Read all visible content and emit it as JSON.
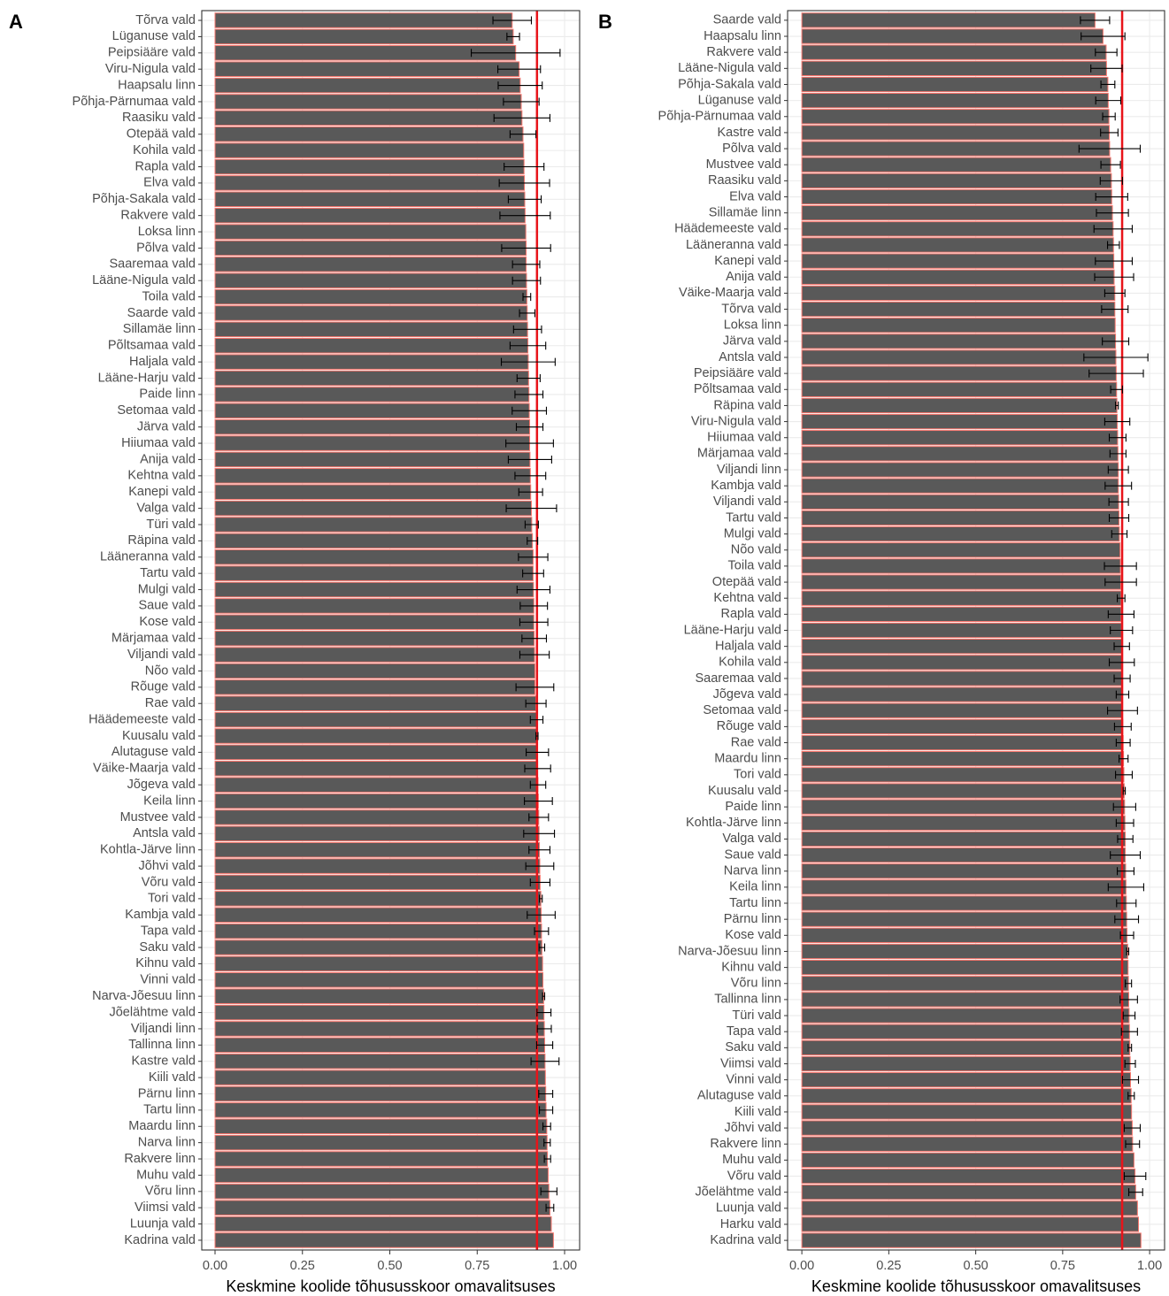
{
  "chart_data": [
    {
      "type": "bar",
      "orientation": "horizontal",
      "tag": "A",
      "categories": [
        "Tõrva vald",
        "Lüganuse vald",
        "Peipsiääre vald",
        "Viru-Nigula vald",
        "Haapsalu linn",
        "Põhja-Pärnumaa vald",
        "Raasiku vald",
        "Otepää vald",
        "Kohila vald",
        "Rapla vald",
        "Elva vald",
        "Põhja-Sakala vald",
        "Rakvere vald",
        "Loksa linn",
        "Põlva vald",
        "Saaremaa vald",
        "Lääne-Nigula vald",
        "Toila vald",
        "Saarde vald",
        "Sillamäe linn",
        "Põltsamaa vald",
        "Haljala vald",
        "Lääne-Harju vald",
        "Paide linn",
        "Setomaa vald",
        "Järva vald",
        "Hiiumaa vald",
        "Anija vald",
        "Kehtna vald",
        "Kanepi vald",
        "Valga vald",
        "Türi vald",
        "Räpina vald",
        "Lääneranna vald",
        "Tartu vald",
        "Mulgi vald",
        "Saue vald",
        "Kose vald",
        "Märjamaa vald",
        "Viljandi vald",
        "Nõo vald",
        "Rõuge vald",
        "Rae vald",
        "Häädemeeste vald",
        "Kuusalu vald",
        "Alutaguse vald",
        "Väike-Maarja vald",
        "Jõgeva vald",
        "Keila linn",
        "Mustvee vald",
        "Antsla vald",
        "Kohtla-Järve linn",
        "Jõhvi vald",
        "Võru vald",
        "Tori vald",
        "Kambja vald",
        "Tapa vald",
        "Saku vald",
        "Kihnu vald",
        "Vinni vald",
        "Narva-Jõesuu linn",
        "Jõelähtme vald",
        "Viljandi linn",
        "Tallinna linn",
        "Kastre vald",
        "Kiili vald",
        "Pärnu linn",
        "Tartu linn",
        "Maardu linn",
        "Narva linn",
        "Rakvere linn",
        "Muhu vald",
        "Võru linn",
        "Viimsi vald",
        "Luunja vald",
        "Kadrina vald"
      ],
      "values": [
        0.85,
        0.853,
        0.86,
        0.87,
        0.873,
        0.876,
        0.878,
        0.881,
        0.883,
        0.884,
        0.885,
        0.886,
        0.887,
        0.889,
        0.89,
        0.89,
        0.891,
        0.892,
        0.893,
        0.894,
        0.895,
        0.896,
        0.897,
        0.898,
        0.899,
        0.9,
        0.9,
        0.901,
        0.902,
        0.903,
        0.905,
        0.906,
        0.908,
        0.91,
        0.91,
        0.911,
        0.912,
        0.912,
        0.913,
        0.914,
        0.915,
        0.915,
        0.918,
        0.92,
        0.921,
        0.922,
        0.923,
        0.924,
        0.925,
        0.926,
        0.927,
        0.928,
        0.929,
        0.93,
        0.932,
        0.933,
        0.934,
        0.935,
        0.937,
        0.938,
        0.94,
        0.941,
        0.942,
        0.943,
        0.944,
        0.945,
        0.946,
        0.947,
        0.949,
        0.95,
        0.951,
        0.953,
        0.955,
        0.958,
        0.962,
        0.968
      ],
      "errors": [
        0.055,
        0.018,
        0.127,
        0.061,
        0.063,
        0.051,
        0.08,
        0.037,
        null,
        0.057,
        0.072,
        0.047,
        0.072,
        null,
        0.07,
        0.039,
        0.04,
        0.011,
        0.022,
        0.04,
        0.051,
        0.077,
        0.033,
        0.04,
        0.049,
        0.038,
        0.068,
        0.062,
        0.044,
        0.034,
        0.072,
        0.019,
        0.015,
        0.042,
        0.03,
        0.047,
        0.039,
        0.04,
        0.035,
        0.042,
        null,
        0.054,
        0.029,
        0.018,
        0.003,
        0.032,
        0.037,
        0.022,
        0.04,
        0.028,
        0.044,
        0.03,
        0.04,
        0.028,
        0.004,
        0.04,
        0.02,
        0.008,
        null,
        null,
        0.003,
        0.02,
        0.02,
        0.023,
        0.04,
        null,
        0.02,
        0.019,
        0.011,
        0.009,
        0.009,
        null,
        0.023,
        0.011,
        null,
        null
      ],
      "xlim": [
        -0.038,
        1.043
      ],
      "xticks": [
        {
          "value": 0,
          "label": "0.00"
        },
        {
          "value": 0.25,
          "label": "0.25"
        },
        {
          "value": 0.5,
          "label": "0.50"
        },
        {
          "value": 0.75,
          "label": "0.75"
        },
        {
          "value": 1,
          "label": "1.00"
        }
      ],
      "x_label": "Keskmine koolide tõhususskoor omavalitsuses",
      "reference_line": 0.921,
      "reference_color": "#e8141a",
      "color": "#595959",
      "edge_color": "#f8766d",
      "grid": true
    },
    {
      "type": "bar",
      "orientation": "horizontal",
      "tag": "B",
      "categories": [
        "Saarde vald",
        "Haapsalu linn",
        "Rakvere vald",
        "Lääne-Nigula vald",
        "Põhja-Sakala vald",
        "Lüganuse vald",
        "Põhja-Pärnumaa vald",
        "Kastre vald",
        "Põlva vald",
        "Mustvee vald",
        "Raasiku vald",
        "Elva vald",
        "Sillamäe linn",
        "Häädemeeste vald",
        "Lääneranna vald",
        "Kanepi vald",
        "Anija vald",
        "Väike-Maarja vald",
        "Tõrva vald",
        "Loksa linn",
        "Järva vald",
        "Antsla vald",
        "Peipsiääre vald",
        "Põltsamaa vald",
        "Räpina vald",
        "Viru-Nigula vald",
        "Hiiumaa vald",
        "Märjamaa vald",
        "Viljandi linn",
        "Kambja vald",
        "Viljandi vald",
        "Tartu vald",
        "Mulgi vald",
        "Nõo vald",
        "Toila vald",
        "Otepää vald",
        "Kehtna vald",
        "Rapla vald",
        "Lääne-Harju vald",
        "Haljala vald",
        "Kohila vald",
        "Saaremaa vald",
        "Jõgeva vald",
        "Setomaa vald",
        "Rõuge vald",
        "Rae vald",
        "Maardu linn",
        "Tori vald",
        "Kuusalu vald",
        "Paide linn",
        "Kohtla-Järve linn",
        "Valga vald",
        "Saue vald",
        "Narva linn",
        "Keila linn",
        "Tartu linn",
        "Pärnu linn",
        "Kose vald",
        "Narva-Jõesuu linn",
        "Kihnu vald",
        "Võru linn",
        "Tallinna linn",
        "Türi vald",
        "Tapa vald",
        "Saku vald",
        "Viimsi vald",
        "Vinni vald",
        "Alutaguse vald",
        "Kiili vald",
        "Jõhvi vald",
        "Rakvere linn",
        "Muhu vald",
        "Võru vald",
        "Jõelähtme vald",
        "Luunja vald",
        "Harku vald",
        "Kadrina vald"
      ],
      "values": [
        0.843,
        0.866,
        0.875,
        0.876,
        0.88,
        0.881,
        0.883,
        0.884,
        0.885,
        0.888,
        0.89,
        0.891,
        0.893,
        0.895,
        0.896,
        0.897,
        0.898,
        0.9,
        0.9,
        0.901,
        0.902,
        0.903,
        0.904,
        0.905,
        0.906,
        0.907,
        0.908,
        0.909,
        0.91,
        0.91,
        0.911,
        0.912,
        0.913,
        0.915,
        0.916,
        0.917,
        0.918,
        0.918,
        0.919,
        0.92,
        0.92,
        0.921,
        0.922,
        0.922,
        0.923,
        0.924,
        0.925,
        0.926,
        0.927,
        0.928,
        0.929,
        0.93,
        0.93,
        0.931,
        0.932,
        0.933,
        0.934,
        0.935,
        0.937,
        0.938,
        0.939,
        0.94,
        0.941,
        0.942,
        0.943,
        0.944,
        0.945,
        0.947,
        0.948,
        0.95,
        0.951,
        0.955,
        0.958,
        0.96,
        0.965,
        0.968,
        0.975
      ],
      "errors": [
        0.042,
        0.063,
        0.031,
        0.045,
        0.02,
        0.036,
        0.018,
        0.025,
        0.088,
        0.028,
        0.032,
        0.046,
        0.046,
        0.055,
        0.017,
        0.053,
        0.056,
        0.029,
        0.038,
        null,
        0.038,
        0.092,
        0.078,
        0.017,
        0.004,
        0.036,
        0.024,
        0.023,
        0.029,
        0.038,
        0.028,
        0.028,
        0.022,
        null,
        0.046,
        0.045,
        0.011,
        0.037,
        0.032,
        0.022,
        0.036,
        0.023,
        0.018,
        0.043,
        0.024,
        0.02,
        0.013,
        0.024,
        0.003,
        0.032,
        0.025,
        0.022,
        0.043,
        0.024,
        0.051,
        0.028,
        0.034,
        0.019,
        0.003,
        null,
        0.009,
        0.025,
        0.017,
        0.023,
        0.005,
        0.015,
        0.023,
        0.009,
        null,
        0.023,
        0.02,
        null,
        0.031,
        0.02,
        null,
        null,
        null
      ],
      "xlim": [
        -0.041,
        1.043
      ],
      "xticks": [
        {
          "value": 0,
          "label": "0.00"
        },
        {
          "value": 0.25,
          "label": "0.25"
        },
        {
          "value": 0.5,
          "label": "0.50"
        },
        {
          "value": 0.75,
          "label": "0.75"
        },
        {
          "value": 1,
          "label": "1.00"
        }
      ],
      "x_label": "Keskmine koolide tõhususskoor omavalitsuses",
      "reference_line": 0.921,
      "reference_color": "#e8141a",
      "color": "#595959",
      "edge_color": "#f8766d",
      "grid": true
    }
  ]
}
